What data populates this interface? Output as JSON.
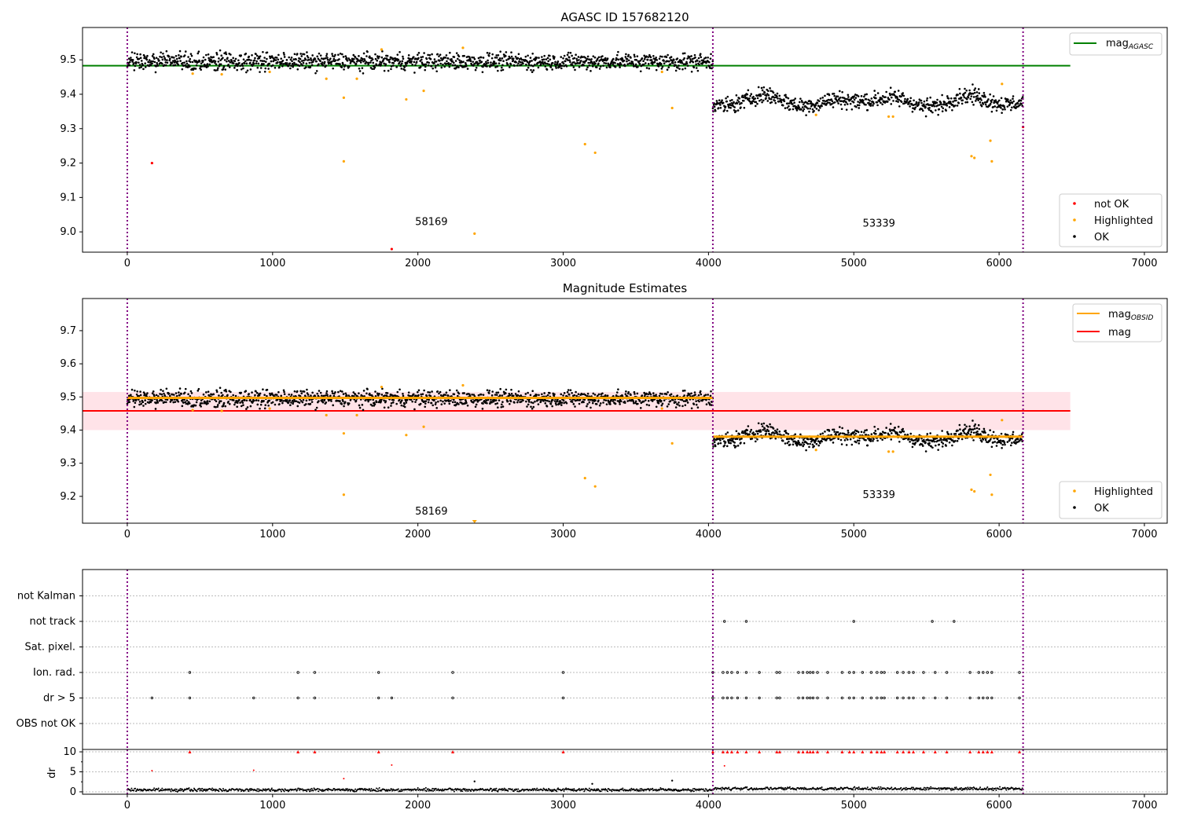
{
  "colors": {
    "ok": "#000000",
    "highlighted": "#ffa500",
    "not_ok": "#ff0000",
    "agasc": "#008000",
    "obsid": "#ffa500",
    "mag": "#ff0000",
    "band": "#ffc0cb",
    "vline": "#800080"
  },
  "chart_data": [
    {
      "type": "scatter",
      "title": "AGASC ID 157682120",
      "xlim": [
        -308,
        7157
      ],
      "ylim": [
        8.941,
        9.594
      ],
      "xticks": [
        "0",
        "1000",
        "2000",
        "3000",
        "4000",
        "5000",
        "6000",
        "7000"
      ],
      "yticks": [
        "9.0",
        "9.1",
        "9.2",
        "9.3",
        "9.4",
        "9.5"
      ],
      "legend_top": {
        "mag_label": "mag",
        "mag_sub": "AGASC"
      },
      "legend_bottom": [
        "not OK",
        "Highlighted",
        "OK"
      ],
      "agasc_mag": 9.483,
      "agasc_xrange": [
        -308,
        6490
      ],
      "obsid_boundaries": [
        0,
        4030,
        6165
      ],
      "obsids": [
        {
          "label": "58169",
          "x": 1900,
          "y": 9.02
        },
        {
          "label": "53339",
          "x": 4980,
          "y": 9.015
        }
      ],
      "ok_segments": [
        {
          "x": [
            0,
            4030
          ],
          "mean": 9.495,
          "scatter": 0.012
        },
        {
          "x": [
            4030,
            6165
          ],
          "mean": 9.38,
          "scatter": 0.012
        }
      ],
      "highlighted": [
        [
          1370,
          9.445
        ],
        [
          1490,
          9.39
        ],
        [
          1490,
          9.205
        ],
        [
          1580,
          9.445
        ],
        [
          1920,
          9.385
        ],
        [
          2040,
          9.41
        ],
        [
          2390,
          8.995
        ],
        [
          3150,
          9.255
        ],
        [
          3220,
          9.23
        ],
        [
          3750,
          9.36
        ],
        [
          4740,
          9.34
        ],
        [
          5240,
          9.335
        ],
        [
          5270,
          9.335
        ],
        [
          5810,
          9.22
        ],
        [
          5830,
          9.215
        ],
        [
          5940,
          9.265
        ],
        [
          5950,
          9.205
        ],
        [
          6020,
          9.43
        ],
        [
          450,
          9.46
        ],
        [
          650,
          9.458
        ],
        [
          980,
          9.465
        ],
        [
          2310,
          9.535
        ],
        [
          1750,
          9.53
        ],
        [
          3680,
          9.465
        ]
      ],
      "not_ok": [
        [
          170,
          9.2
        ],
        [
          1820,
          8.95
        ],
        [
          6165,
          9.305
        ]
      ]
    },
    {
      "type": "scatter",
      "title": "Magnitude Estimates",
      "xlim": [
        -308,
        7157
      ],
      "ylim": [
        9.119,
        9.797
      ],
      "xticks": [
        "0",
        "1000",
        "2000",
        "3000",
        "4000",
        "5000",
        "6000",
        "7000"
      ],
      "yticks": [
        "9.2",
        "9.3",
        "9.4",
        "9.5",
        "9.6",
        "9.7"
      ],
      "legend_top": [
        {
          "label": "mag",
          "sub": "OBSID"
        },
        {
          "label": "mag",
          "sub": ""
        }
      ],
      "legend_bottom": [
        "Highlighted",
        "OK"
      ],
      "mag": 9.458,
      "mag_band": [
        9.4,
        9.515
      ],
      "mag_xrange": [
        -308,
        6490
      ],
      "obsid_mags": [
        {
          "x": [
            0,
            4030
          ],
          "mag": 9.497
        },
        {
          "x": [
            4030,
            6165
          ],
          "mag": 9.38
        }
      ],
      "obsids": [
        {
          "label": "58169",
          "x": 1900,
          "y": 9.145
        },
        {
          "label": "53339",
          "x": 4980,
          "y": 9.195
        }
      ]
    },
    {
      "type": "scatter",
      "title": "",
      "ylabels": [
        "OBS not OK",
        "dr > 5",
        "Ion. rad.",
        "Sat. pixel.",
        "not track",
        "not Kalman"
      ],
      "flags": {
        "not track": [
          4110,
          4260,
          5000,
          5540,
          5690
        ],
        "Ion. rad.": [
          430,
          1175,
          1290,
          1730,
          2240,
          3000,
          4030,
          4100,
          4130,
          4160,
          4200,
          4260,
          4350,
          4470,
          4490,
          4620,
          4650,
          4680,
          4700,
          4720,
          4750,
          4820,
          4920,
          4970,
          5000,
          5060,
          5120,
          5160,
          5190,
          5210,
          5300,
          5340,
          5380,
          5410,
          5480,
          5560,
          5640,
          5800,
          5860,
          5890,
          5920,
          5950,
          6140
        ],
        "dr > 5": [
          170,
          430,
          870,
          1175,
          1290,
          1730,
          1820,
          2240,
          3000,
          4030,
          4100,
          4130,
          4160,
          4200,
          4260,
          4350,
          4470,
          4490,
          4620,
          4650,
          4680,
          4700,
          4720,
          4750,
          4820,
          4920,
          4970,
          5000,
          5060,
          5120,
          5160,
          5190,
          5210,
          5300,
          5340,
          5380,
          5410,
          5480,
          5560,
          5640,
          5800,
          5860,
          5890,
          5920,
          5950,
          6140
        ]
      }
    },
    {
      "type": "scatter",
      "ylabel": "dr",
      "yticks": [
        "0",
        "5",
        "10"
      ],
      "ylim": [
        -0.6,
        10.6
      ],
      "xticks": [
        "0",
        "1000",
        "2000",
        "3000",
        "4000",
        "5000",
        "6000",
        "7000"
      ],
      "clipped_at_10": [
        430,
        1175,
        1290,
        1730,
        2240,
        3000,
        4030,
        4100,
        4130,
        4160,
        4200,
        4260,
        4350,
        4470,
        4490,
        4620,
        4650,
        4680,
        4700,
        4720,
        4750,
        4820,
        4920,
        4970,
        5000,
        5060,
        5120,
        5160,
        5190,
        5210,
        5300,
        5340,
        5380,
        5410,
        5480,
        5560,
        5640,
        5800,
        5860,
        5890,
        5920,
        5950,
        6140
      ],
      "red_points": [
        [
          170,
          5.3
        ],
        [
          870,
          5.4
        ],
        [
          1490,
          3.3
        ],
        [
          1820,
          6.7
        ],
        [
          4110,
          6.5
        ]
      ],
      "black_outliers": [
        [
          2390,
          2.6
        ],
        [
          3200,
          2.0
        ],
        [
          3750,
          2.8
        ]
      ],
      "baseline": {
        "mean": 0.5,
        "scatter": 0.3
      }
    }
  ]
}
